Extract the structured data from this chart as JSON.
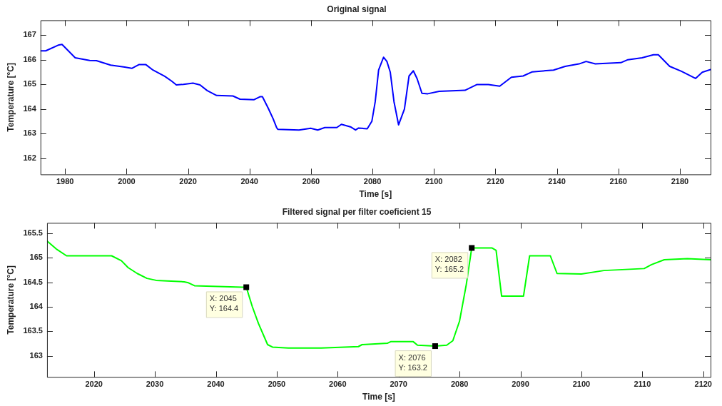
{
  "chart_data": [
    {
      "type": "line",
      "title": "Original signal",
      "xlabel": "Time [s]",
      "ylabel": "Temperature [°C]",
      "xlim": [
        1972,
        2190
      ],
      "xticks": [
        1980,
        2000,
        2020,
        2040,
        2060,
        2080,
        2100,
        2120,
        2140,
        2160,
        2180
      ],
      "ylim": [
        161.35,
        167.6
      ],
      "yticks": [
        162,
        163,
        164,
        165,
        166,
        167
      ],
      "grid": false,
      "legend": false,
      "marker": "none",
      "line_style": "solid",
      "series": [
        {
          "color": "#0000ff",
          "x": [
            1972,
            1973.7,
            1978,
            1979,
            1983.3,
            1988,
            1990.2,
            1994.8,
            1999.4,
            2001.7,
            2004,
            2006.3,
            2008.6,
            2012.4,
            2014.7,
            2016.2,
            2018.5,
            2021.6,
            2023.9,
            2026.2,
            2029.3,
            2034.6,
            2036.9,
            2041.5,
            2043.4,
            2044.2,
            2046.1,
            2047.7,
            2048.8,
            2049.2,
            2056.1,
            2059.9,
            2062.2,
            2064.5,
            2068.4,
            2069.9,
            2073,
            2074.5,
            2075.5,
            2078.3,
            2079.8,
            2080.9,
            2082,
            2083.6,
            2084.7,
            2085.8,
            2087,
            2088.5,
            2090.4,
            2091.9,
            2093.3,
            2094.5,
            2096.1,
            2098,
            2101.7,
            2110.1,
            2113.9,
            2117.7,
            2121.4,
            2125.2,
            2129,
            2132,
            2138.9,
            2142.7,
            2147.2,
            2149.5,
            2152.5,
            2160.8,
            2163.1,
            2167.7,
            2171.4,
            2173,
            2176.7,
            2180.5,
            2185.1,
            2187.3,
            2190
          ],
          "values": [
            166.36,
            166.36,
            166.6,
            166.62,
            166.08,
            165.97,
            165.96,
            165.78,
            165.7,
            165.65,
            165.8,
            165.8,
            165.58,
            165.33,
            165.13,
            164.98,
            165,
            165.05,
            164.98,
            164.75,
            164.55,
            164.53,
            164.4,
            164.38,
            164.5,
            164.5,
            164.03,
            163.6,
            163.25,
            163.18,
            163.15,
            163.22,
            163.15,
            163.25,
            163.25,
            163.38,
            163.27,
            163.15,
            163.23,
            163.2,
            163.5,
            164.3,
            165.58,
            166.1,
            165.93,
            165.49,
            164.3,
            163.36,
            164,
            165.34,
            165.55,
            165.24,
            164.64,
            164.62,
            164.72,
            164.76,
            164.99,
            164.99,
            164.93,
            165.29,
            165.34,
            165.51,
            165.58,
            165.73,
            165.83,
            165.93,
            165.83,
            165.88,
            166,
            166.08,
            166.2,
            166.2,
            165.73,
            165.53,
            165.24,
            165.49,
            165.6
          ]
        }
      ]
    },
    {
      "type": "line",
      "title": "Filtered signal per filter coeficient 15",
      "xlabel": "Time [s]",
      "ylabel": "Temperature [°C]",
      "xlim": [
        2012.3,
        2121.2
      ],
      "xticks": [
        2020,
        2030,
        2040,
        2050,
        2060,
        2070,
        2080,
        2090,
        2100,
        2110,
        2120
      ],
      "ylim": [
        162.57,
        165.71
      ],
      "yticks": [
        163,
        163.5,
        164,
        164.5,
        165,
        165.5
      ],
      "grid": false,
      "legend": false,
      "marker": "none",
      "line_style": "solid",
      "series": [
        {
          "color": "#00ff00",
          "x": [
            2012.3,
            2013.8,
            2015.5,
            2022.9,
            2024.5,
            2025.6,
            2027.1,
            2028.7,
            2030.2,
            2034.8,
            2035.5,
            2036.5,
            2044.3,
            2045,
            2046,
            2047,
            2048.5,
            2049.3,
            2051.9,
            2057.3,
            2063.4,
            2064,
            2068.2,
            2068.7,
            2072.4,
            2073.1,
            2076,
            2077.9,
            2078.9,
            2080,
            2081.1,
            2082,
            2085.3,
            2086,
            2086.9,
            2090.5,
            2091.5,
            2094.9,
            2096,
            2100,
            2103.7,
            2110.3,
            2111.5,
            2113.6,
            2117.4,
            2121.2
          ],
          "values": [
            165.34,
            165.18,
            165.04,
            165.04,
            164.94,
            164.8,
            164.68,
            164.58,
            164.54,
            164.51,
            164.49,
            164.43,
            164.4,
            164.4,
            164,
            163.66,
            163.23,
            163.18,
            163.16,
            163.16,
            163.19,
            163.23,
            163.26,
            163.29,
            163.29,
            163.22,
            163.2,
            163.22,
            163.31,
            163.71,
            164.45,
            165.2,
            165.2,
            165.15,
            164.22,
            164.22,
            165.04,
            165.04,
            164.68,
            164.67,
            164.74,
            164.78,
            164.86,
            164.96,
            164.98,
            164.96
          ]
        }
      ],
      "annotations": [
        {
          "text": "X: 2045\nY: 164.4",
          "x": 2045,
          "y": 164.4
        },
        {
          "text": "X: 2076\nY: 163.2",
          "x": 2076,
          "y": 163.2
        },
        {
          "text": "X: 2082\nY: 165.2",
          "x": 2082,
          "y": 165.2
        }
      ]
    }
  ]
}
